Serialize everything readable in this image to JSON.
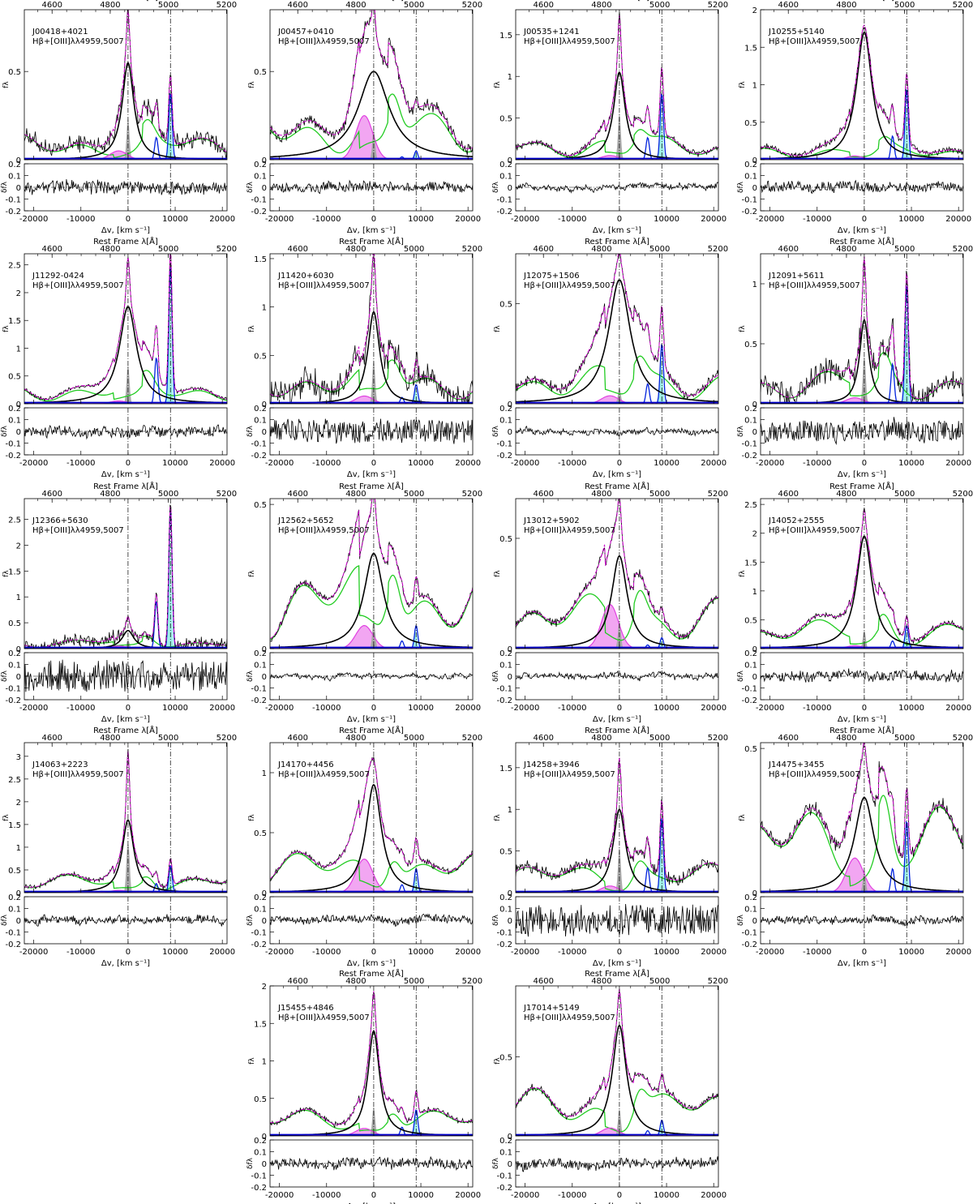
{
  "figure": {
    "top_axis_label": "Rest Frame λ[Å]",
    "x_axis_label": "Δv, [km s⁻¹]",
    "main_y_label": "fλ",
    "resid_y_label": "δfλ",
    "line_label": "Hβ+[OIII]λλ4959,5007",
    "colors": {
      "observed": "#000000",
      "model_total": "#cc00cc",
      "hbeta_broad": "#000000",
      "hbeta_inter": "#e040e0",
      "hbeta_inter_fill": "#f2a6f2",
      "hbeta_narrow_fill": "#aaaaaa",
      "feii": "#22cc22",
      "oiii": "#0022dd",
      "oiii_fill": "#9ff0e8",
      "continuum": "#0000cc"
    }
  },
  "chart_data": {
    "type": "line",
    "description_x": "velocity offset from Hβ",
    "x_range": [
      -22000,
      21000
    ],
    "x_ticks": [
      -20000,
      -10000,
      0,
      10000,
      20000
    ],
    "x_tick_labels": [
      "-20000",
      "-10000",
      "0",
      "10000",
      "20000"
    ],
    "top_ticks": [
      4600,
      4800,
      5000,
      5200
    ],
    "top_tick_labels": [
      "4600",
      "4800",
      "5000",
      "5200"
    ],
    "resid_range": [
      -0.2,
      0.2
    ],
    "resid_ticks": [
      -0.2,
      -0.1,
      0,
      0.1,
      0.2
    ],
    "resid_tick_labels": [
      "-0.2",
      "-0.1",
      "0",
      "0.1",
      "0.2"
    ],
    "reference_lines_kms": [
      0,
      9000
    ],
    "panels": [
      {
        "name": "J00418+4021",
        "ymax": 0.85,
        "yticks": [
          0,
          0.5
        ],
        "ytick_labels": [
          "0",
          "0.5"
        ],
        "broad_peak": 0.55,
        "broad_width": 1500,
        "peak_total": 0.82,
        "oiii_peak": 0.38,
        "feii_level": 0.15,
        "inter_peak": 0.05,
        "noise": 0.04,
        "resid_noise": 0.05
      },
      {
        "name": "J00457+0410",
        "ymax": 0.85,
        "yticks": [
          0,
          0.5
        ],
        "ytick_labels": [
          "0",
          "0.5"
        ],
        "broad_peak": 0.5,
        "broad_width": 4000,
        "peak_total": 0.8,
        "oiii_peak": 0.05,
        "feii_level": 0.3,
        "inter_peak": 0.25,
        "noise": 0.03,
        "resid_noise": 0.04
      },
      {
        "name": "J00535+1241",
        "ymax": 1.8,
        "yticks": [
          0,
          0.5,
          1,
          1.5
        ],
        "ytick_labels": [
          "0",
          "0.5",
          "1",
          "1.5"
        ],
        "broad_peak": 1.05,
        "broad_width": 1500,
        "peak_total": 1.65,
        "oiii_peak": 0.8,
        "feii_level": 0.3,
        "inter_peak": 0.05,
        "noise": 0.03,
        "resid_noise": 0.02
      },
      {
        "name": "J10255+5140",
        "ymax": 2.0,
        "yticks": [
          0,
          0.5,
          1,
          1.5,
          2
        ],
        "ytick_labels": [
          "0",
          "0.5",
          "1",
          "1.5",
          "2"
        ],
        "broad_peak": 1.7,
        "broad_width": 2000,
        "peak_total": 1.75,
        "oiii_peak": 0.95,
        "feii_level": 0.2,
        "inter_peak": 0.05,
        "noise": 0.04,
        "resid_noise": 0.04
      },
      {
        "name": "J11292-0424",
        "ymax": 2.7,
        "yticks": [
          0,
          0.5,
          1,
          1.5,
          2,
          2.5
        ],
        "ytick_labels": [
          "0",
          "0.5",
          "1",
          "1.5",
          "2",
          "2.5"
        ],
        "broad_peak": 1.75,
        "broad_width": 2200,
        "peak_total": 2.5,
        "oiii_peak": 2.5,
        "feii_level": 0.4,
        "inter_peak": 0.05,
        "noise": 0.03,
        "resid_noise": 0.04
      },
      {
        "name": "J11420+6030",
        "ymax": 1.55,
        "yticks": [
          0,
          0.5,
          1,
          1.5
        ],
        "ytick_labels": [
          "0",
          "0.5",
          "1",
          "1.5"
        ],
        "broad_peak": 0.95,
        "broad_width": 1500,
        "peak_total": 1.45,
        "oiii_peak": 0.2,
        "feii_level": 0.4,
        "inter_peak": 0.08,
        "noise": 0.12,
        "resid_noise": 0.1
      },
      {
        "name": "J12075+1506",
        "ymax": 0.75,
        "yticks": [
          0,
          0.5
        ],
        "ytick_labels": [
          "0",
          "0.5"
        ],
        "broad_peak": 0.62,
        "broad_width": 2800,
        "peak_total": 0.72,
        "oiii_peak": 0.3,
        "feii_level": 0.2,
        "inter_peak": 0.04,
        "noise": 0.02,
        "resid_noise": 0.02
      },
      {
        "name": "J12091+5611",
        "ymax": 1.25,
        "yticks": [
          0,
          0.5,
          1
        ],
        "ytick_labels": [
          "0",
          "0.5",
          "1"
        ],
        "broad_peak": 0.7,
        "broad_width": 1200,
        "peak_total": 1.15,
        "oiii_peak": 1.0,
        "feii_level": 0.3,
        "inter_peak": 0.05,
        "noise": 0.08,
        "resid_noise": 0.09
      },
      {
        "name": "J12366+5630",
        "ymax": 2.9,
        "yticks": [
          0,
          0.5,
          1,
          1.5,
          2,
          2.5
        ],
        "ytick_labels": [
          "0",
          "0.5",
          "1",
          "1.5",
          "2",
          "2.5"
        ],
        "broad_peak": 0.35,
        "broad_width": 1500,
        "peak_total": 0.55,
        "oiii_peak": 2.75,
        "feii_level": 0.2,
        "inter_peak": 0.05,
        "noise": 0.1,
        "resid_noise": 0.13
      },
      {
        "name": "J12562+5652",
        "ymax": 0.52,
        "yticks": [
          0,
          0.5
        ],
        "ytick_labels": [
          "0",
          "0.5"
        ],
        "broad_peak": 0.33,
        "broad_width": 2500,
        "peak_total": 0.47,
        "oiii_peak": 0.08,
        "feii_level": 0.3,
        "inter_peak": 0.08,
        "noise": 0.01,
        "resid_noise": 0.015
      },
      {
        "name": "J13012+5902",
        "ymax": 0.68,
        "yticks": [
          0,
          0.5
        ],
        "ytick_labels": [
          "0",
          "0.5"
        ],
        "broad_peak": 0.42,
        "broad_width": 2000,
        "peak_total": 0.65,
        "oiii_peak": 0.05,
        "feii_level": 0.25,
        "inter_peak": 0.2,
        "noise": 0.015,
        "resid_noise": 0.02
      },
      {
        "name": "J14052+2555",
        "ymax": 2.6,
        "yticks": [
          0,
          0.5,
          1,
          1.5,
          2,
          2.5
        ],
        "ytick_labels": [
          "0",
          "0.5",
          "1",
          "1.5",
          "2",
          "2.5"
        ],
        "broad_peak": 1.95,
        "broad_width": 2000,
        "peak_total": 2.3,
        "oiii_peak": 0.4,
        "feii_level": 0.5,
        "inter_peak": 0.05,
        "noise": 0.04,
        "resid_noise": 0.04
      },
      {
        "name": "J14063+2223",
        "ymax": 3.3,
        "yticks": [
          0,
          0.5,
          1,
          1.5,
          2,
          2.5,
          3
        ],
        "ytick_labels": [
          "0",
          "0.5",
          "1",
          "1.5",
          "2",
          "2.5",
          "3"
        ],
        "broad_peak": 1.6,
        "broad_width": 1500,
        "peak_total": 3.0,
        "oiii_peak": 0.6,
        "feii_level": 0.4,
        "inter_peak": 0.05,
        "noise": 0.04,
        "resid_noise": 0.03
      },
      {
        "name": "J14170+4456",
        "ymax": 1.25,
        "yticks": [
          0,
          0.5,
          1
        ],
        "ytick_labels": [
          "0",
          "0.5",
          "1"
        ],
        "broad_peak": 0.9,
        "broad_width": 2000,
        "peak_total": 1.15,
        "oiii_peak": 0.2,
        "feii_level": 0.35,
        "inter_peak": 0.28,
        "noise": 0.02,
        "resid_noise": 0.03
      },
      {
        "name": "J14258+3946",
        "ymax": 1.8,
        "yticks": [
          0,
          0.5,
          1,
          1.5
        ],
        "ytick_labels": [
          "0",
          "0.5",
          "1",
          "1.5"
        ],
        "broad_peak": 1.0,
        "broad_width": 1600,
        "peak_total": 1.6,
        "oiii_peak": 0.9,
        "feii_level": 0.35,
        "inter_peak": 0.08,
        "noise": 0.06,
        "resid_noise": 0.13
      },
      {
        "name": "J14475+3455",
        "ymax": 0.52,
        "yticks": [
          0,
          0.5
        ],
        "ytick_labels": [
          "0",
          "0.5"
        ],
        "broad_peak": 0.33,
        "broad_width": 2500,
        "peak_total": 0.47,
        "oiii_peak": 0.25,
        "feii_level": 0.3,
        "inter_peak": 0.12,
        "noise": 0.02,
        "resid_noise": 0.03
      },
      {
        "name": "J15455+4846",
        "ymax": 2.0,
        "yticks": [
          0,
          0.5,
          1,
          1.5,
          2
        ],
        "ytick_labels": [
          "0",
          "0.5",
          "1",
          "1.5",
          "2"
        ],
        "broad_peak": 1.4,
        "broad_width": 1500,
        "peak_total": 1.85,
        "oiii_peak": 0.35,
        "feii_level": 0.35,
        "inter_peak": 0.1,
        "noise": 0.03,
        "resid_noise": 0.04
      },
      {
        "name": "J17014+5149",
        "ymax": 0.95,
        "yticks": [
          0,
          0.5
        ],
        "ytick_labels": [
          "0",
          "0.5"
        ],
        "broad_peak": 0.7,
        "broad_width": 1800,
        "peak_total": 0.9,
        "oiii_peak": 0.1,
        "feii_level": 0.3,
        "inter_peak": 0.05,
        "noise": 0.02,
        "resid_noise": 0.04
      }
    ]
  }
}
